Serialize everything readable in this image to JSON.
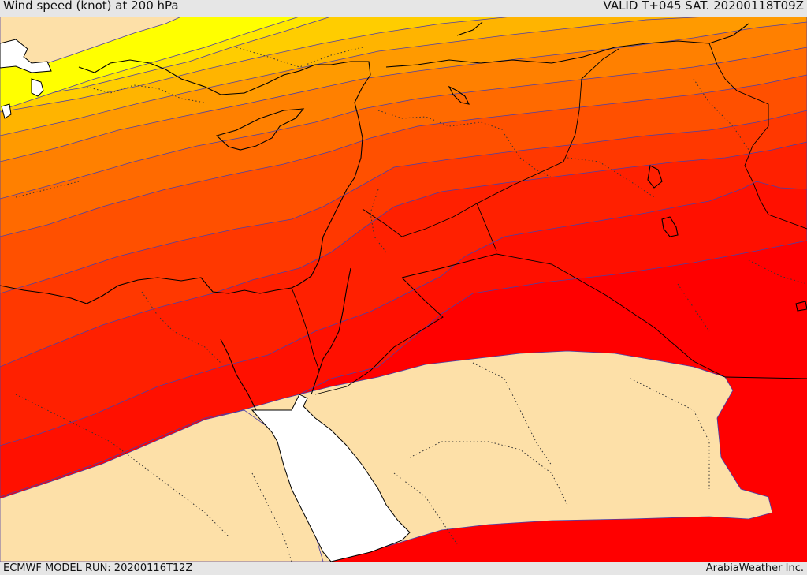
{
  "header": {
    "title": "Wind speed (knot) at 200 hPa",
    "valid": "VALID T+045 SAT. 20200118T09Z"
  },
  "footer": {
    "model_run": "ECMWF MODEL RUN: 20200116T12Z",
    "credit": "ArabiaWeather Inc."
  },
  "palette": {
    "calm": "#fde0a8",
    "band_1": "#ffff00",
    "band_2": "#ffe600",
    "band_3": "#ffcd00",
    "band_4": "#ffb400",
    "band_5": "#ff9a00",
    "band_6": "#ff8000",
    "band_7": "#ff6a00",
    "band_8": "#ff5000",
    "band_9": "#ff3800",
    "band_10": "#ff2000",
    "band_11": "#ff1000",
    "band_12": "#ff0000",
    "sea": "#ffffff"
  }
}
